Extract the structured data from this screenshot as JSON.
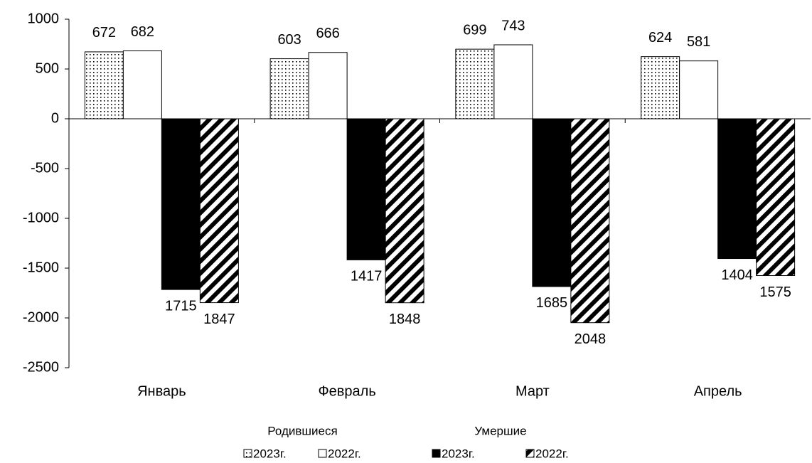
{
  "chart_data": {
    "type": "bar",
    "categories": [
      "Январь",
      "Февраль",
      "Март",
      "Апрель"
    ],
    "series": [
      {
        "name": "2023г.",
        "group": 0,
        "color": "#000000",
        "pattern": "dots",
        "values": [
          672,
          603,
          699,
          624
        ]
      },
      {
        "name": "2022г.",
        "group": 0,
        "color": "#ffffff",
        "pattern": "none",
        "values": [
          682,
          666,
          743,
          581
        ]
      },
      {
        "name": "2023г.",
        "group": 1,
        "color": "#000000",
        "pattern": "solid",
        "values": [
          -1715,
          -1417,
          -1685,
          -1404
        ],
        "value_labels": [
          "1715",
          "1417",
          "1685",
          "1404"
        ]
      },
      {
        "name": "2022г.",
        "group": 1,
        "color": "#000000",
        "pattern": "stripes",
        "values": [
          -1847,
          -1848,
          -2048,
          -1575
        ],
        "value_labels": [
          "1847",
          "1848",
          "2048",
          "1575"
        ]
      }
    ],
    "legend_groups": [
      "Родившиеся",
      "Умершие"
    ],
    "ylim": [
      -2500,
      1000
    ],
    "yticks": [
      -2500,
      -2000,
      -1500,
      -1000,
      -500,
      0,
      500,
      1000
    ],
    "grid": false,
    "legend": "bottom"
  }
}
